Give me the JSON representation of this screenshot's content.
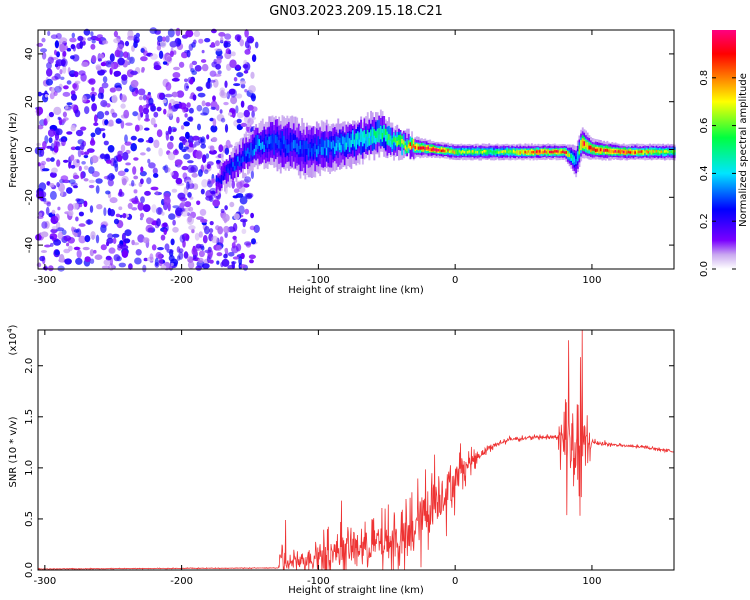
{
  "title": "GN03.2023.209.15.18.C21",
  "chart_data": [
    {
      "type": "heatmap",
      "xlabel": "Height of straight line (km)",
      "ylabel": "Frequency (Hz)",
      "xlim": [
        -305,
        160
      ],
      "ylim": [
        -50,
        50
      ],
      "x_ticks": [
        -300,
        -200,
        -100,
        0,
        100
      ],
      "y_ticks": [
        -40,
        -20,
        0,
        20,
        40
      ],
      "colorbar": {
        "label": "Normalized spectral amplitude",
        "range": [
          0,
          1
        ],
        "ticks": [
          "0.0",
          "0.2",
          "0.4",
          "0.6",
          "0.8"
        ],
        "tick_values": [
          0.0,
          0.2,
          0.4,
          0.6,
          0.8
        ],
        "colors": [
          "#ffffff",
          "#c9a8f0",
          "#7a00ff",
          "#0000ff",
          "#00e5ff",
          "#00ff40",
          "#ffff00",
          "#ff8000",
          "#ff0000",
          "#ff0080"
        ]
      },
      "noise_region": {
        "x": [
          -305,
          -145
        ],
        "mean_amplitude": 0.15
      },
      "ridge": {
        "x": [
          -175,
          -160,
          -145,
          -130,
          -110,
          -90,
          -70,
          -55,
          -45,
          -30,
          -15,
          0,
          30,
          60,
          80,
          88,
          92,
          100,
          120,
          160
        ],
        "center_freq": [
          -14,
          -5,
          2,
          3,
          0,
          1,
          4,
          7,
          3,
          1,
          0,
          -1,
          -1,
          -1,
          -1,
          -5,
          3,
          0,
          -1,
          -1
        ],
        "bandwidth": [
          4,
          6,
          8,
          10,
          10,
          9,
          8,
          8,
          6,
          4,
          3,
          3,
          3,
          3,
          3,
          6,
          6,
          4,
          3,
          3
        ],
        "peak_amplitude": [
          0.25,
          0.3,
          0.35,
          0.3,
          0.3,
          0.35,
          0.45,
          0.5,
          0.55,
          0.85,
          0.9,
          0.65,
          0.6,
          0.85,
          0.85,
          0.3,
          0.85,
          0.85,
          0.9,
          0.6
        ]
      },
      "series_color": "#7a00ff"
    },
    {
      "type": "line",
      "xlabel": "Height of straight line (km)",
      "ylabel": "SNR (10 * v/v)",
      "y_multiplier_label": "(x10",
      "y_multiplier_exp": "4",
      "y_multiplier_close": ")",
      "xlim": [
        -305,
        160
      ],
      "ylim": [
        0,
        2.35
      ],
      "x_ticks": [
        -300,
        -200,
        -100,
        0,
        100
      ],
      "y_ticks": [
        "0.0",
        "0.5",
        "1.0",
        "1.5",
        "2.0"
      ],
      "y_tick_values": [
        0.0,
        0.5,
        1.0,
        1.5,
        2.0
      ],
      "color": "#ee3333",
      "envelope": {
        "x": [
          -305,
          -130,
          -125,
          -124,
          -100,
          -80,
          -60,
          -35,
          -20,
          -5,
          10,
          25,
          40,
          60,
          75,
          78,
          85,
          90,
          95,
          100,
          120,
          140,
          160
        ],
        "mean": [
          0.01,
          0.02,
          0.1,
          0.05,
          0.15,
          0.2,
          0.25,
          0.3,
          0.6,
          0.8,
          1.05,
          1.2,
          1.28,
          1.3,
          1.3,
          1.25,
          1.2,
          1.25,
          1.2,
          1.25,
          1.22,
          1.2,
          1.16
        ],
        "spread": [
          0.005,
          0.005,
          0.4,
          0.1,
          0.25,
          0.3,
          0.35,
          0.45,
          0.55,
          0.45,
          0.15,
          0.05,
          0.03,
          0.03,
          0.03,
          0.45,
          1.0,
          1.0,
          0.6,
          0.05,
          0.02,
          0.02,
          0.02
        ]
      },
      "peaks": [
        {
          "x": -124,
          "y": 0.49
        },
        {
          "x": -83,
          "y": 0.68
        },
        {
          "x": -15,
          "y": 1.13
        },
        {
          "x": 4,
          "y": 1.24
        },
        {
          "x": 83,
          "y": 2.25
        },
        {
          "x": 93,
          "y": 2.35
        }
      ],
      "num_samples": 1400
    }
  ]
}
